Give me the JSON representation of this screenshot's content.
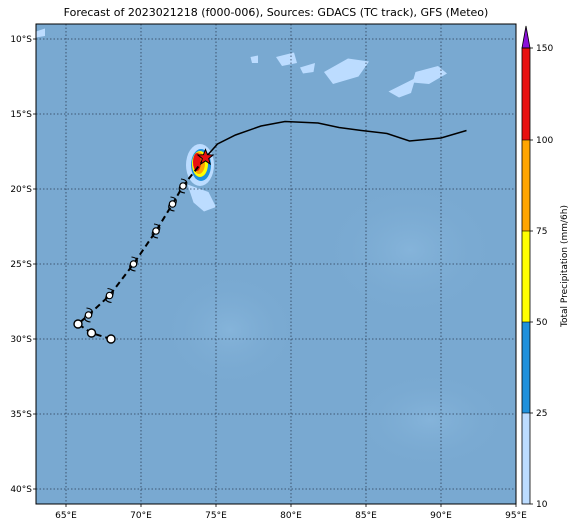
{
  "title": "Forecast of 2023021218 (f000-006), Sources: GDACS (TC track), GFS (Meteo)",
  "map": {
    "lon_range": [
      63,
      95
    ],
    "lat_range": [
      -41,
      -9
    ],
    "lon_ticks": [
      "65°E",
      "70°E",
      "75°E",
      "80°E",
      "85°E",
      "90°E",
      "95°E"
    ],
    "lat_ticks": [
      "10°S",
      "15°S",
      "20°S",
      "25°S",
      "30°S",
      "35°S",
      "40°S"
    ],
    "ocean_color": "#79a9d1",
    "grid": true
  },
  "colorbar": {
    "label": "Total Precipitation (mm/6h)",
    "ticks": [
      "10",
      "25",
      "50",
      "75",
      "100",
      "150"
    ],
    "bands": [
      {
        "from": 10,
        "to": 25,
        "color": "#bcdcff"
      },
      {
        "from": 25,
        "to": 50,
        "color": "#1e90dc"
      },
      {
        "from": 50,
        "to": 75,
        "color": "#ffff00"
      },
      {
        "from": 75,
        "to": 100,
        "color": "#ffa500"
      },
      {
        "from": 100,
        "to": 150,
        "color": "#e81010"
      },
      {
        "from": 150,
        "to": 160,
        "color": "#8a10d8"
      }
    ]
  },
  "track": {
    "past": [
      [
        68.0,
        -30.0
      ],
      [
        66.7,
        -29.6
      ],
      [
        65.8,
        -29.0
      ],
      [
        66.5,
        -28.4
      ],
      [
        67.9,
        -27.1
      ],
      [
        69.5,
        -25.0
      ],
      [
        71.0,
        -22.8
      ],
      [
        72.1,
        -21.0
      ],
      [
        72.8,
        -19.8
      ],
      [
        74.3,
        -17.9
      ]
    ],
    "forecast": [
      [
        74.3,
        -17.9
      ],
      [
        75.1,
        -17.0
      ],
      [
        76.3,
        -16.4
      ],
      [
        78.0,
        -15.8
      ],
      [
        79.6,
        -15.5
      ],
      [
        81.8,
        -15.6
      ],
      [
        83.2,
        -15.9
      ],
      [
        84.7,
        -16.1
      ],
      [
        86.4,
        -16.3
      ],
      [
        87.9,
        -16.8
      ],
      [
        90.0,
        -16.6
      ],
      [
        91.7,
        -16.1
      ]
    ],
    "current": [
      74.3,
      -17.9
    ]
  },
  "land": [
    {
      "name": "land-patch-1",
      "pts": [
        [
          82.2,
          -12.2
        ],
        [
          83.8,
          -11.3
        ],
        [
          85.2,
          -11.5
        ],
        [
          84.5,
          -12.5
        ],
        [
          82.8,
          -13.0
        ]
      ]
    },
    {
      "name": "land-patch-2",
      "pts": [
        [
          79.0,
          -11.2
        ],
        [
          80.2,
          -10.9
        ],
        [
          80.4,
          -11.6
        ],
        [
          79.4,
          -11.8
        ]
      ]
    },
    {
      "name": "land-patch-3",
      "pts": [
        [
          88.3,
          -12.2
        ],
        [
          89.8,
          -11.8
        ],
        [
          90.4,
          -12.3
        ],
        [
          89.2,
          -13.0
        ],
        [
          88.1,
          -12.9
        ]
      ]
    },
    {
      "name": "land-patch-4",
      "pts": [
        [
          86.5,
          -13.5
        ],
        [
          87.5,
          -13.0
        ],
        [
          88.3,
          -12.6
        ],
        [
          88.0,
          -13.6
        ],
        [
          87.2,
          -13.9
        ]
      ]
    },
    {
      "name": "land-patch-5",
      "pts": [
        [
          80.6,
          -11.9
        ],
        [
          81.6,
          -11.6
        ],
        [
          81.5,
          -12.2
        ],
        [
          80.8,
          -12.3
        ]
      ]
    },
    {
      "name": "land-patch-6",
      "pts": [
        [
          77.3,
          -11.2
        ],
        [
          77.8,
          -11.1
        ],
        [
          77.8,
          -11.6
        ],
        [
          77.4,
          -11.6
        ]
      ]
    },
    {
      "name": "land-patch-7",
      "pts": [
        [
          63.0,
          -9.5
        ],
        [
          63.6,
          -9.3
        ],
        [
          63.6,
          -9.8
        ],
        [
          63.0,
          -9.9
        ]
      ]
    },
    {
      "name": "land-patch-8",
      "pts": [
        [
          73.1,
          -19.7
        ],
        [
          74.5,
          -20.2
        ],
        [
          75.0,
          -21.2
        ],
        [
          74.2,
          -21.5
        ],
        [
          73.5,
          -20.9
        ]
      ]
    }
  ]
}
